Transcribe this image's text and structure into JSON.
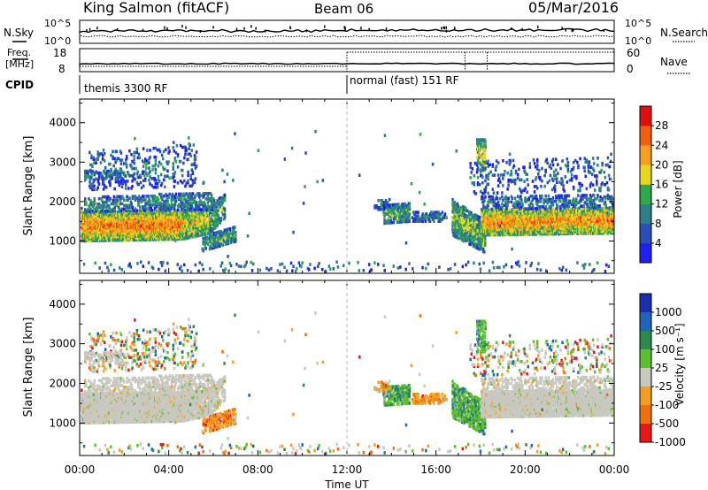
{
  "header": {
    "title": "King Salmon (fitACF)",
    "beam": "Beam 06",
    "date": "05/Mar/2016"
  },
  "status_panels": {
    "nsky_label": "N.Sky",
    "nsearch_label": "N.Search",
    "freq_label": "Freq.",
    "freq_unit": "[MHz]",
    "nave_label": "Nave",
    "cpid_label": "CPID",
    "noise_ticks_left": [
      "10^5",
      "10^0"
    ],
    "noise_ticks_right": [
      "10^5",
      "10^0"
    ],
    "freq_ticks": [
      "18",
      "8"
    ],
    "nave_ticks": [
      "60",
      "0"
    ],
    "cpid_segments": [
      {
        "label": "themis 3300 RF",
        "start_hour": 0
      },
      {
        "label": "normal (fast) 151 RF",
        "start_hour": 12
      }
    ]
  },
  "chart_data": [
    {
      "type": "heatmap",
      "name": "power",
      "ylabel": "Slant Range [km]",
      "xlabel": "",
      "y_ticks": [
        1000,
        2000,
        3000,
        4000
      ],
      "ylim": [
        180,
        4600
      ],
      "xlim_hours": [
        0,
        24
      ],
      "colorbar": {
        "label": "Power [dB]",
        "ticks": [
          "4",
          "8",
          "12",
          "16",
          "20",
          "24",
          "28"
        ],
        "colors": [
          "#1f1ff0",
          "#2a4fb8",
          "#2e7f8a",
          "#2ea84a",
          "#e6d820",
          "#f5a020",
          "#ee6010",
          "#dd1010"
        ]
      }
    },
    {
      "type": "heatmap",
      "name": "velocity",
      "ylabel": "Slant Range [km]",
      "xlabel": "Time UT",
      "x_ticks": [
        "00:00",
        "04:00",
        "08:00",
        "12:00",
        "16:00",
        "20:00",
        "00:00"
      ],
      "y_ticks": [
        1000,
        2000,
        3000,
        4000
      ],
      "ylim": [
        180,
        4600
      ],
      "xlim_hours": [
        0,
        24
      ],
      "colorbar": {
        "label": "Velocity [m s⁻¹]",
        "ticks": [
          "1000",
          "500",
          "100",
          "25",
          "-25",
          "-100",
          "-500",
          "-1000"
        ],
        "colors": [
          "#1a2fb0",
          "#1f66b8",
          "#2e8a4a",
          "#5cc030",
          "#c8c8c0",
          "#f0a020",
          "#f07010",
          "#e81818"
        ]
      }
    }
  ]
}
